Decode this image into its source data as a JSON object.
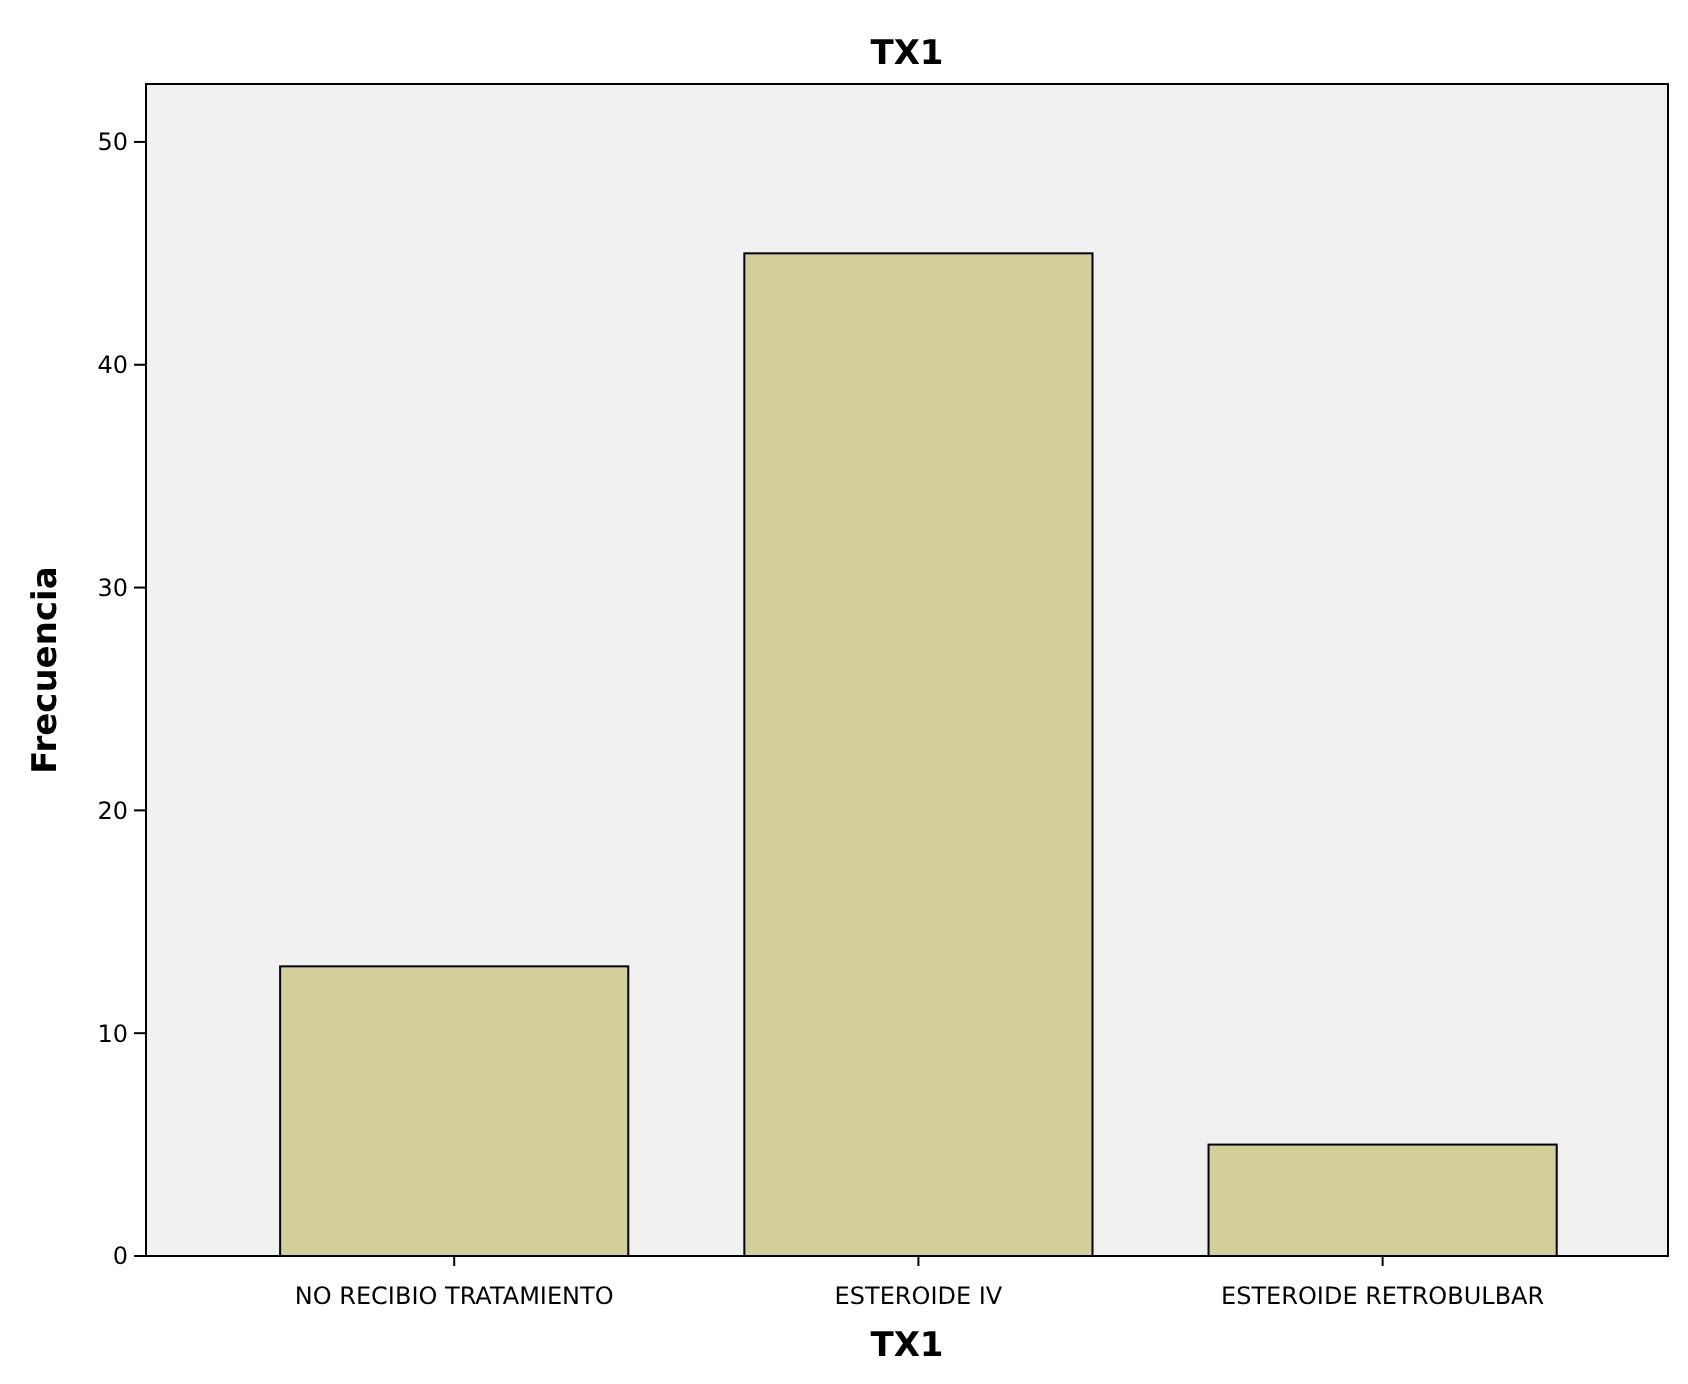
{
  "chart_data": {
    "type": "bar",
    "title": "TX1",
    "xlabel": "TX1",
    "ylabel": "Frecuencia",
    "categories": [
      "NO RECIBIO TRATAMIENTO",
      "ESTEROIDE IV",
      "ESTEROIDE RETROBULBAR"
    ],
    "values": [
      13,
      45,
      5
    ],
    "color": "#d3cf98",
    "ylim": [
      0,
      52.6
    ],
    "yticks": [
      0,
      10,
      20,
      30,
      40,
      50
    ],
    "grid": false
  }
}
